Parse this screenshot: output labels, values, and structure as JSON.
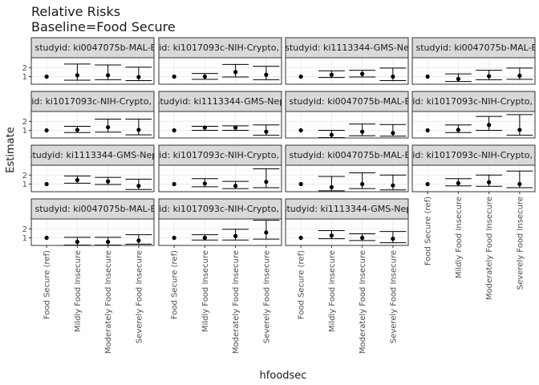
{
  "chart_data": {
    "type": "scatter",
    "title": "Relative Risks",
    "subtitle": "Baseline=Food Secure",
    "xlabel": "hfoodsec",
    "ylabel": "Estimate",
    "categories": [
      "Food Secure (ref)",
      "Mildly Food Insecure",
      "Moderately Food Insecure",
      "Severely Food Insecure"
    ],
    "y_ticks": [
      1,
      2
    ],
    "ylim": [
      0.15,
      3.1
    ],
    "grid": true,
    "facets": [
      {
        "label": ", studyid: ki0047075b-MAL-E",
        "estimate": [
          1,
          1.15,
          1.15,
          0.95
        ],
        "lower": [
          1,
          0.6,
          0.65,
          0.55
        ],
        "upper": [
          1,
          2.4,
          2.3,
          2.05
        ]
      },
      {
        "label": "yid: ki1017093c-NIH-Crypto, s",
        "estimate": [
          1,
          1.0,
          1.5,
          1.2
        ],
        "lower": [
          1,
          0.7,
          0.95,
          0.65
        ],
        "upper": [
          1,
          1.35,
          2.35,
          2.15
        ]
      },
      {
        "label": "studyid: ki1113344-GMS-Ne",
        "estimate": [
          1,
          1.2,
          1.3,
          1.0
        ],
        "lower": [
          1,
          0.9,
          0.95,
          0.55
        ],
        "upper": [
          1,
          1.65,
          1.7,
          1.95
        ]
      },
      {
        "label": ", studyid: ki0047075b-MAL-E",
        "estimate": [
          1,
          0.75,
          1.05,
          1.1
        ],
        "lower": [
          1,
          0.45,
          0.65,
          0.7
        ],
        "upper": [
          1,
          1.3,
          1.7,
          1.95
        ]
      },
      {
        "label": "yid: ki1017093c-NIH-Crypto, s",
        "estimate": [
          1,
          1.05,
          1.35,
          1.05
        ],
        "lower": [
          1,
          0.75,
          0.8,
          0.5
        ],
        "upper": [
          1,
          1.45,
          2.25,
          2.25
        ]
      },
      {
        "label": "studyid: ki1113344-GMS-Nep",
        "estimate": [
          1,
          1.3,
          1.3,
          0.85
        ],
        "lower": [
          1,
          1.0,
          1.0,
          0.45
        ],
        "upper": [
          1,
          1.45,
          1.5,
          1.6
        ]
      },
      {
        "label": ", studyid: ki0047075b-MAL-E",
        "estimate": [
          1,
          0.5,
          0.85,
          0.7
        ],
        "lower": [
          1,
          0.2,
          0.4,
          0.35
        ],
        "upper": [
          1,
          1.0,
          1.7,
          1.65
        ]
      },
      {
        "label": "yid: ki1017093c-NIH-Crypto, s",
        "estimate": [
          1,
          1.05,
          1.6,
          1.05
        ],
        "lower": [
          1,
          0.75,
          1.0,
          0.45
        ],
        "upper": [
          1,
          1.6,
          2.55,
          2.75
        ]
      },
      {
        "label": "studyid: ki1113344-GMS-Nep",
        "estimate": [
          1,
          1.45,
          1.3,
          0.8
        ],
        "lower": [
          1,
          1.1,
          0.95,
          0.4
        ],
        "upper": [
          1,
          1.9,
          1.75,
          1.55
        ]
      },
      {
        "label": "yid: ki1017093c-NIH-Crypto, s",
        "estimate": [
          1,
          1.05,
          0.8,
          1.25
        ],
        "lower": [
          1,
          0.7,
          0.5,
          0.6
        ],
        "upper": [
          1,
          1.6,
          1.3,
          2.7
        ]
      },
      {
        "label": ", studyid: ki0047075b-MAL-E",
        "estimate": [
          1,
          0.65,
          1.0,
          0.85
        ],
        "lower": [
          1,
          0.25,
          0.5,
          0.35
        ],
        "upper": [
          1,
          1.85,
          2.25,
          2.0
        ]
      },
      {
        "label": "yid: ki1017093c-NIH-Crypto, s",
        "estimate": [
          1,
          1.1,
          1.2,
          1.0
        ],
        "lower": [
          1,
          0.8,
          0.75,
          0.6
        ],
        "upper": [
          1,
          1.6,
          2.0,
          2.45
        ]
      },
      {
        "label": ", studyid: ki0047075b-MAL-E",
        "estimate": [
          1,
          0.55,
          0.55,
          0.7
        ],
        "lower": [
          1,
          0.2,
          0.2,
          0.3
        ],
        "upper": [
          1,
          1.05,
          1.05,
          1.35
        ]
      },
      {
        "label": "yid: ki1017093c-NIH-Crypto, s",
        "estimate": [
          1,
          1.0,
          1.2,
          1.6
        ],
        "lower": [
          1,
          0.75,
          0.75,
          0.85
        ],
        "upper": [
          1,
          1.35,
          1.95,
          2.95
        ]
      },
      {
        "label": "studyid: ki1113344-GMS-Nep",
        "estimate": [
          1,
          1.25,
          1.0,
          0.9
        ],
        "lower": [
          1,
          0.9,
          0.7,
          0.45
        ],
        "upper": [
          1,
          1.8,
          1.45,
          1.7
        ]
      }
    ]
  }
}
